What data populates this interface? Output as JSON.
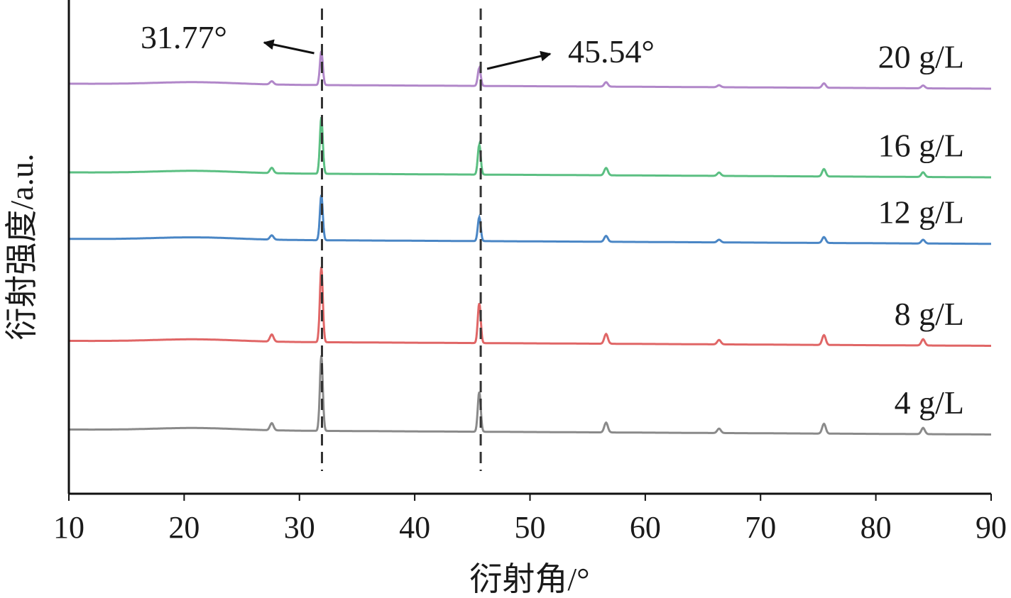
{
  "chart_data": {
    "type": "line",
    "xlabel": "衍射角/°",
    "ylabel": "衍射强度/a.u.",
    "xlim": [
      10,
      90
    ],
    "xticks": [
      10,
      20,
      30,
      40,
      50,
      60,
      70,
      80,
      90
    ],
    "grid": false,
    "legend": "inline labels at right end of each curve",
    "series": [
      {
        "name": "4 g/L",
        "color": "#8a8a8a",
        "offset": 0,
        "baseline": 10,
        "height_scale": 1.0
      },
      {
        "name": "8 g/L",
        "color": "#e06666",
        "offset": 100,
        "baseline": 10,
        "height_scale": 1.0
      },
      {
        "name": "12 g/L",
        "color": "#4a86c5",
        "offset": 215,
        "baseline": 10,
        "height_scale": 0.6
      },
      {
        "name": "16 g/L",
        "color": "#5bbf82",
        "offset": 290,
        "baseline": 10,
        "height_scale": 0.75
      },
      {
        "name": "20 g/L",
        "color": "#b187c9",
        "offset": 390,
        "baseline": 10,
        "height_scale": 0.45
      }
    ],
    "peaks": [
      {
        "x": 27.6,
        "height": 8,
        "width": 0.22
      },
      {
        "x": 31.9,
        "height": 85,
        "width": 0.18
      },
      {
        "x": 45.6,
        "height": 45,
        "width": 0.18
      },
      {
        "x": 56.6,
        "height": 11,
        "width": 0.22
      },
      {
        "x": 66.4,
        "height": 5,
        "width": 0.22
      },
      {
        "x": 75.5,
        "height": 11,
        "width": 0.22
      },
      {
        "x": 84.1,
        "height": 7,
        "width": 0.22
      }
    ],
    "reference_lines": [
      31.77,
      45.54
    ],
    "annotations": [
      {
        "text": "31.77°",
        "x": 31.77
      },
      {
        "text": "45.54°",
        "x": 45.54
      }
    ]
  }
}
